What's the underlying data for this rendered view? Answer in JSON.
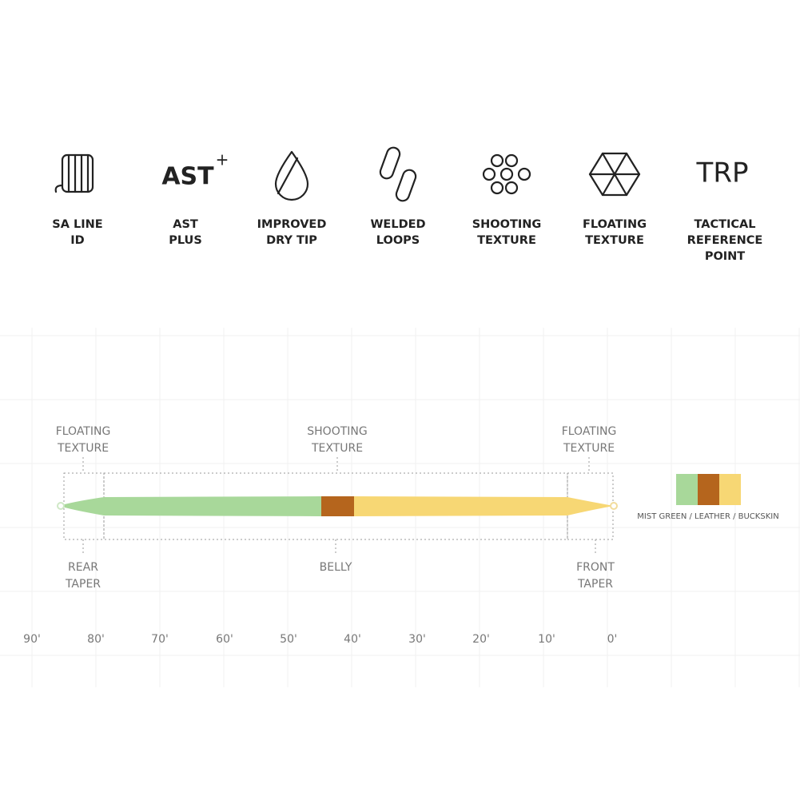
{
  "features": [
    {
      "label": [
        "SA LINE",
        "ID"
      ]
    },
    {
      "icon_text": "AST",
      "icon_sup": "+",
      "label": [
        "AST",
        "PLUS"
      ]
    },
    {
      "label": [
        "IMPROVED",
        "DRY TIP"
      ]
    },
    {
      "label": [
        "WELDED",
        "LOOPS"
      ]
    },
    {
      "label": [
        "SHOOTING",
        "TEXTURE"
      ]
    },
    {
      "label": [
        "FLOATING",
        "TEXTURE"
      ]
    },
    {
      "icon_text": "TRP",
      "label": [
        "TACTICAL",
        "REFERENCE",
        "POINT"
      ]
    }
  ],
  "diagram": {
    "top_labels": [
      [
        "FLOATING",
        "TEXTURE"
      ],
      [
        "SHOOTING",
        "TEXTURE"
      ],
      [
        "FLOATING",
        "TEXTURE"
      ]
    ],
    "bottom_labels": [
      [
        "REAR",
        "TAPER"
      ],
      [
        "BELLY"
      ],
      [
        "FRONT",
        "TAPER"
      ]
    ],
    "scale": [
      "90'",
      "80'",
      "70'",
      "60'",
      "50'",
      "40'",
      "30'",
      "20'",
      "10'",
      "0'"
    ],
    "colors": [
      "#a8d89a",
      "#b5651d",
      "#f7d774"
    ],
    "color_label": "MIST GREEN / LEATHER / BUCKSKIN"
  }
}
